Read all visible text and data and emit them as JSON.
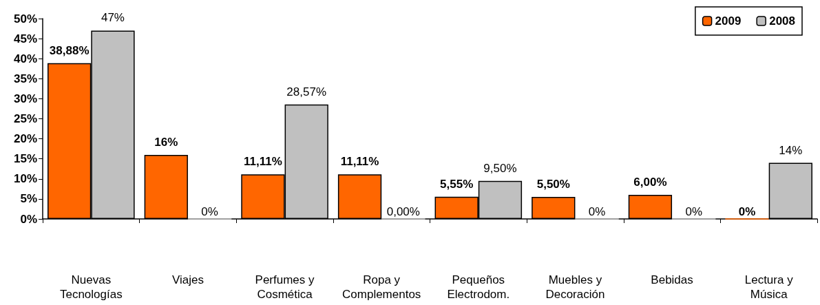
{
  "chart_data": {
    "type": "bar",
    "categories": [
      "Nuevas\nTecnologías",
      "Viajes",
      "Perfumes y\nCosmética",
      "Ropa y\nComplementos",
      "Pequeños\nElectrodom.",
      "Muebles y\nDecoración",
      "Bebidas",
      "Lectura y\nMúsica"
    ],
    "series": [
      {
        "name": "2009",
        "color": "#ff6600",
        "values": [
          38.88,
          16,
          11.11,
          11.11,
          5.55,
          5.5,
          6,
          0
        ],
        "value_labels": [
          "38,88%",
          "16%",
          "11,11%",
          "11,11%",
          "5,55%",
          "5,50%",
          "6,00%",
          "0%"
        ]
      },
      {
        "name": "2008",
        "color": "#c0c0c0",
        "values": [
          47,
          0,
          28.57,
          0,
          9.5,
          0,
          0,
          14
        ],
        "value_labels": [
          "47%",
          "0%",
          "28,57%",
          "0,00%",
          "9,50%",
          "0%",
          "0%",
          "14%"
        ]
      }
    ],
    "ylim": [
      0,
      50
    ],
    "yticks": [
      {
        "value": 0,
        "label": "0%"
      },
      {
        "value": 5,
        "label": "5%"
      },
      {
        "value": 10,
        "label": "10%"
      },
      {
        "value": 15,
        "label": "15%"
      },
      {
        "value": 20,
        "label": "20%"
      },
      {
        "value": 25,
        "label": "25%"
      },
      {
        "value": 30,
        "label": "30%"
      },
      {
        "value": 35,
        "label": "35%"
      },
      {
        "value": 40,
        "label": "40%"
      },
      {
        "value": 45,
        "label": "45%"
      },
      {
        "value": 50,
        "label": "50%"
      }
    ],
    "grid": false,
    "legend": "top right"
  }
}
